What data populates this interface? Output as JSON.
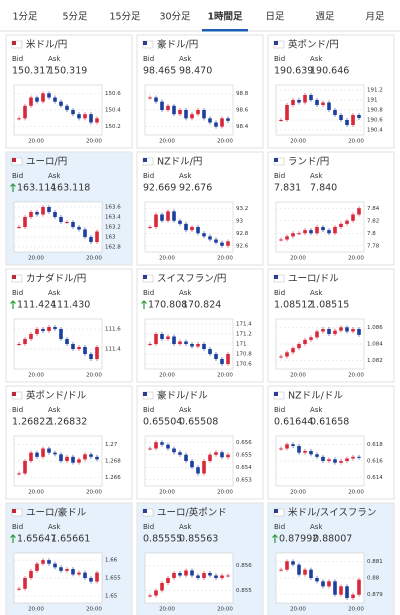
{
  "tabs": [
    "1分足",
    "5分足",
    "15分足",
    "30分足",
    "1時間足",
    "日足",
    "週足",
    "月足"
  ],
  "active_tab": 4,
  "bid_label": "Bid",
  "ask_label": "Ask",
  "xticks": [
    "20:00",
    "20:00"
  ],
  "cards": [
    {
      "name": "米ドル/円",
      "bid": "150.317",
      "ask": "150.319",
      "trend": "none",
      "highlight": false,
      "visited": true,
      "ylim": [
        150.1,
        150.7
      ],
      "yticks": [
        150.2,
        150.4,
        150.6
      ],
      "values": [
        150.3,
        150.45,
        150.55,
        150.5,
        150.6,
        150.55,
        150.5,
        150.45,
        150.4,
        150.35,
        150.3,
        150.35,
        150.25,
        150.3
      ]
    },
    {
      "name": "豪ドル/円",
      "bid": "98.465",
      "ask": "98.470",
      "trend": "none",
      "highlight": false,
      "visited": true,
      "ylim": [
        98.3,
        98.9
      ],
      "yticks": [
        98.4,
        98.6,
        98.8
      ],
      "values": [
        98.75,
        98.7,
        98.6,
        98.65,
        98.55,
        98.6,
        98.5,
        98.55,
        98.6,
        98.5,
        98.45,
        98.4,
        98.5,
        98.47
      ]
    },
    {
      "name": "英ポンド/円",
      "bid": "190.639",
      "ask": "190.646",
      "trend": "none",
      "highlight": false,
      "visited": true,
      "ylim": [
        190.3,
        191.3
      ],
      "yticks": [
        190.4,
        190.6,
        190.8,
        191,
        191.2
      ],
      "values": [
        190.6,
        190.9,
        191.0,
        190.95,
        191.1,
        191.0,
        190.9,
        190.95,
        190.8,
        190.7,
        190.6,
        190.5,
        190.7,
        190.64
      ]
    },
    {
      "name": "ユーロ/円",
      "bid": "163.114",
      "ask": "163.118",
      "trend": "up",
      "highlight": true,
      "visited": true,
      "ylim": [
        162.7,
        163.7
      ],
      "yticks": [
        162.8,
        163,
        163.2,
        163.4,
        163.6
      ],
      "values": [
        163.2,
        163.4,
        163.5,
        163.45,
        163.6,
        163.5,
        163.4,
        163.3,
        163.3,
        163.2,
        163.15,
        163.0,
        162.9,
        163.11
      ]
    },
    {
      "name": "NZドル/円",
      "bid": "92.669",
      "ask": "92.676",
      "trend": "none",
      "highlight": false,
      "visited": true,
      "ylim": [
        92.5,
        93.3
      ],
      "yticks": [
        92.6,
        92.8,
        93,
        93.2
      ],
      "values": [
        92.9,
        93.1,
        93.0,
        93.15,
        93.0,
        92.95,
        92.85,
        92.9,
        92.8,
        92.75,
        92.7,
        92.65,
        92.6,
        92.67
      ]
    },
    {
      "name": "ランド/円",
      "bid": "7.831",
      "ask": "7.840",
      "trend": "none",
      "highlight": false,
      "visited": true,
      "ylim": [
        7.77,
        7.85
      ],
      "yticks": [
        7.78,
        7.8,
        7.82,
        7.84
      ],
      "values": [
        7.79,
        7.795,
        7.8,
        7.8,
        7.805,
        7.8,
        7.81,
        7.805,
        7.8,
        7.81,
        7.815,
        7.82,
        7.83,
        7.84
      ]
    },
    {
      "name": "カナダドル/円",
      "bid": "111.424",
      "ask": "111.430",
      "trend": "up",
      "highlight": false,
      "visited": true,
      "ylim": [
        111.2,
        111.7
      ],
      "yticks": [
        111.4,
        111.6
      ],
      "values": [
        111.45,
        111.5,
        111.55,
        111.6,
        111.58,
        111.62,
        111.6,
        111.5,
        111.45,
        111.4,
        111.42,
        111.35,
        111.3,
        111.42
      ]
    },
    {
      "name": "スイスフラン/円",
      "bid": "170.808",
      "ask": "170.824",
      "trend": "up",
      "highlight": false,
      "visited": true,
      "ylim": [
        170.5,
        171.5
      ],
      "yticks": [
        170.6,
        170.8,
        171,
        171.2,
        171.4
      ],
      "values": [
        171.0,
        171.2,
        171.1,
        171.15,
        171.0,
        171.05,
        171.0,
        170.95,
        171.0,
        170.9,
        170.8,
        170.7,
        170.6,
        170.8
      ]
    },
    {
      "name": "ユーロ/ドル",
      "bid": "1.08512",
      "ask": "1.08515",
      "trend": "none",
      "highlight": false,
      "visited": false,
      "ylim": [
        1.081,
        1.087
      ],
      "yticks": [
        1.082,
        1.084,
        1.086
      ],
      "values": [
        1.0825,
        1.083,
        1.0835,
        1.084,
        1.0845,
        1.0848,
        1.0855,
        1.0858,
        1.0852,
        1.0856,
        1.086,
        1.0855,
        1.0858,
        1.0851
      ]
    },
    {
      "name": "英ポンド/ドル",
      "bid": "1.26822",
      "ask": "1.26832",
      "trend": "none",
      "highlight": false,
      "visited": false,
      "ylim": [
        1.265,
        1.271
      ],
      "yticks": [
        1.266,
        1.268,
        1.27
      ],
      "values": [
        1.2665,
        1.268,
        1.269,
        1.2685,
        1.2695,
        1.269,
        1.2688,
        1.268,
        1.2685,
        1.2678,
        1.2682,
        1.2688,
        1.2685,
        1.2682
      ]
    },
    {
      "name": "豪ドル/ドル",
      "bid": "0.65504",
      "ask": "0.65508",
      "trend": "none",
      "highlight": false,
      "visited": false,
      "ylim": [
        0.6525,
        0.6565
      ],
      "yticks": [
        0.653,
        0.654,
        0.655,
        0.656
      ],
      "values": [
        0.6555,
        0.656,
        0.6558,
        0.6555,
        0.6552,
        0.655,
        0.6545,
        0.654,
        0.6535,
        0.6545,
        0.655,
        0.6552,
        0.6548,
        0.655
      ]
    },
    {
      "name": "NZドル/ドル",
      "bid": "0.61644",
      "ask": "0.61658",
      "trend": "none",
      "highlight": false,
      "visited": false,
      "ylim": [
        0.613,
        0.619
      ],
      "yticks": [
        0.614,
        0.616,
        0.618
      ],
      "values": [
        0.6175,
        0.618,
        0.6178,
        0.617,
        0.6172,
        0.6168,
        0.6165,
        0.616,
        0.6162,
        0.6158,
        0.616,
        0.6163,
        0.6165,
        0.6164
      ]
    },
    {
      "name": "ユーロ/豪ドル",
      "bid": "1.65647",
      "ask": "1.65661",
      "trend": "up",
      "highlight": true,
      "visited": false,
      "ylim": [
        1.648,
        1.662
      ],
      "yticks": [
        1.65,
        1.655,
        1.66
      ],
      "values": [
        1.652,
        1.655,
        1.657,
        1.659,
        1.66,
        1.659,
        1.658,
        1.657,
        1.6575,
        1.656,
        1.6565,
        1.655,
        1.654,
        1.6565
      ]
    },
    {
      "name": "ユーロ/英ポンド",
      "bid": "0.85555",
      "ask": "0.85563",
      "trend": "none",
      "highlight": true,
      "visited": false,
      "ylim": [
        0.8545,
        0.8565
      ],
      "yticks": [
        0.855,
        0.856
      ],
      "values": [
        0.8548,
        0.855,
        0.8553,
        0.8555,
        0.8557,
        0.8556,
        0.8558,
        0.8556,
        0.8555,
        0.8557,
        0.8556,
        0.8555,
        0.8556,
        0.8556
      ]
    },
    {
      "name": "米ドル/スイスフラン",
      "bid": "0.87992",
      "ask": "0.88007",
      "trend": "up",
      "highlight": true,
      "visited": false,
      "ylim": [
        0.8785,
        0.8815
      ],
      "yticks": [
        0.879,
        0.88,
        0.881
      ],
      "values": [
        0.8805,
        0.881,
        0.8808,
        0.8802,
        0.8805,
        0.88,
        0.8798,
        0.8795,
        0.8798,
        0.879,
        0.8795,
        0.8788,
        0.879,
        0.8799
      ]
    }
  ]
}
